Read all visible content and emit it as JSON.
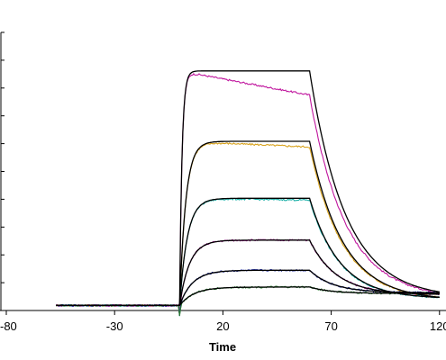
{
  "chart_data": {
    "type": "line",
    "xlabel": "Time",
    "ylabel": "",
    "xlim": [
      -80,
      123
    ],
    "ylim": [
      -0.15,
      8.15
    ],
    "x_ticks": [
      -80,
      -30,
      20,
      70,
      120
    ],
    "x_tick_labels": [
      "-80",
      "-30",
      "20",
      "70",
      "120"
    ],
    "y_tick_count": 10,
    "grid": false,
    "association_start": 0,
    "dissociation_start": 60,
    "end_time": 120,
    "baseline_start": -57,
    "series": [
      {
        "plateau": 7.0,
        "ka": 0.9,
        "kd": 0.06,
        "residual": 0.22,
        "color": "#c0169e",
        "fit_color": "#000000",
        "drift": -0.012
      },
      {
        "plateau": 4.9,
        "ka": 0.35,
        "kd": 0.065,
        "residual": 0.15,
        "color": "#d8a21c",
        "fit_color": "#000000",
        "drift": -0.004
      },
      {
        "plateau": 3.2,
        "ka": 0.28,
        "kd": 0.072,
        "residual": 0.2,
        "color": "#1ab0a8",
        "fit_color": "#000000",
        "drift": -0.002
      },
      {
        "plateau": 1.95,
        "ka": 0.22,
        "kd": 0.08,
        "residual": 0.32,
        "color": "#a02090",
        "fit_color": "#000000",
        "drift": 0.0
      },
      {
        "plateau": 1.05,
        "ka": 0.17,
        "kd": 0.09,
        "residual": 0.38,
        "color": "#1e2a9a",
        "fit_color": "#000000",
        "drift": 0.0
      },
      {
        "plateau": 0.55,
        "ka": 0.15,
        "kd": 0.1,
        "residual": 0.36,
        "color": "#2a7a32",
        "fit_color": "#000000",
        "drift": 0.0
      }
    ]
  }
}
